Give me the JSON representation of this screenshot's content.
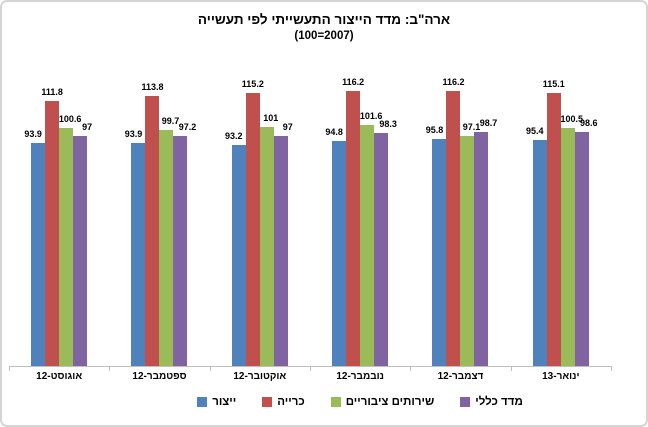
{
  "chart_data": {
    "type": "bar",
    "title": "ארה\"ב: מדד הייצור התעשייתי לפי תעשייה",
    "subtitle": "(100=2007)",
    "categories": [
      "אוגוסט-12",
      "ספטמבר-12",
      "אוקטובר-12",
      "נובמבר-12",
      "דצמבר-12",
      "ינואר-13"
    ],
    "series": [
      {
        "name": "ייצור",
        "color": "#4F81BD",
        "values": [
          93.9,
          93.9,
          93.2,
          94.8,
          95.8,
          95.4
        ]
      },
      {
        "name": "כרייה",
        "color": "#C0504D",
        "values": [
          111.8,
          113.8,
          115.2,
          116.2,
          116.2,
          115.1
        ]
      },
      {
        "name": "שירותים ציבוריים",
        "color": "#9BBB59",
        "values": [
          100.6,
          99.7,
          101,
          101.6,
          97.1,
          100.5
        ]
      },
      {
        "name": "מדד כללי",
        "color": "#8064A2",
        "values": [
          97,
          97.2,
          97,
          98.3,
          98.7,
          98.6
        ]
      }
    ],
    "value_labels_shown": true,
    "legend_position": "bottom",
    "grid": false,
    "y_axis": {
      "visible": false,
      "implied_min": 0
    },
    "axis_color": "#BFBFBF",
    "text_color": "#000000",
    "background_color": "#FFFFFF"
  }
}
